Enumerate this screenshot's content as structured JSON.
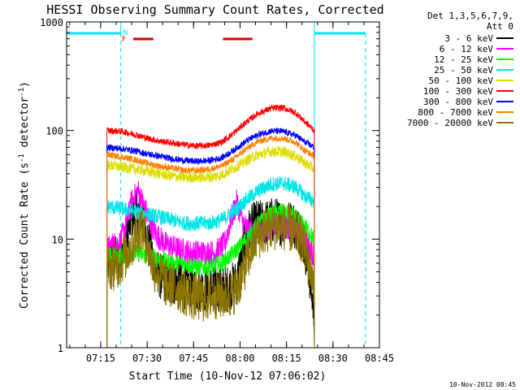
{
  "chart_data": {
    "type": "line",
    "title": "HESSI Observing Summary Count Rates, Corrected",
    "xlabel": "Start Time (10-Nov-12 07:06:02)",
    "ylabel_main": "Corrected Count Rate (s",
    "ylabel_sup1": "-1",
    "ylabel_mid": " detector",
    "ylabel_sup2": "-1",
    "ylabel_end": ")",
    "y_scale": "log",
    "ylim": [
      1,
      1000
    ],
    "xlim_minutes": [
      -2.0,
      99.0
    ],
    "x_ticks": [
      {
        "m": 9,
        "label": "07:15"
      },
      {
        "m": 24,
        "label": "07:30"
      },
      {
        "m": 39,
        "label": "07:45"
      },
      {
        "m": 54,
        "label": "08:00"
      },
      {
        "m": 69,
        "label": "08:15"
      },
      {
        "m": 84,
        "label": "08:30"
      },
      {
        "m": 99,
        "label": "08:45"
      }
    ],
    "y_ticks": [
      {
        "v": 1,
        "label": "1"
      },
      {
        "v": 10,
        "label": "10"
      },
      {
        "v": 100,
        "label": "100"
      },
      {
        "v": 1000,
        "label": "1000"
      }
    ],
    "legend_title": [
      "Det 1,3,5,6,7,9,",
      "Att 0"
    ],
    "legend_placement": "right",
    "data_interval_minutes": [
      11,
      78
    ],
    "night_intervals_minutes": [
      [
        -2,
        15.5
      ],
      [
        78,
        94.5
      ]
    ],
    "night_marker_label": "N",
    "night_bar_color": "#00e5e5",
    "flare_intervals_minutes": [
      [
        19.5,
        26
      ],
      [
        48.5,
        58
      ]
    ],
    "flare_marker_label": "F",
    "flare_bar_color": "#e00000",
    "dashed_markers_minutes": [
      15.5,
      94.5
    ],
    "series": [
      {
        "name": "3 - 6 keV",
        "color": "#000000",
        "points": [
          [
            11,
            6
          ],
          [
            13,
            7
          ],
          [
            15,
            6
          ],
          [
            17,
            10
          ],
          [
            19,
            16
          ],
          [
            21,
            18
          ],
          [
            23,
            14
          ],
          [
            25,
            8
          ],
          [
            27,
            5
          ],
          [
            30,
            4
          ],
          [
            34,
            4
          ],
          [
            38,
            3.5
          ],
          [
            42,
            3.5
          ],
          [
            46,
            3.5
          ],
          [
            50,
            3.5
          ],
          [
            53,
            4
          ],
          [
            55,
            8
          ],
          [
            57,
            12
          ],
          [
            59,
            14
          ],
          [
            62,
            14
          ],
          [
            65,
            15
          ],
          [
            68,
            14
          ],
          [
            71,
            14
          ],
          [
            74,
            11
          ],
          [
            76,
            6
          ],
          [
            78,
            2
          ]
        ]
      },
      {
        "name": "6 - 12 keV",
        "color": "#ff00ff",
        "points": [
          [
            11,
            8
          ],
          [
            13,
            9
          ],
          [
            15,
            9
          ],
          [
            17,
            13
          ],
          [
            19,
            22
          ],
          [
            21,
            28
          ],
          [
            23,
            20
          ],
          [
            25,
            14
          ],
          [
            27,
            11
          ],
          [
            30,
            9
          ],
          [
            34,
            8
          ],
          [
            38,
            7.5
          ],
          [
            42,
            7.5
          ],
          [
            46,
            7.5
          ],
          [
            49,
            9
          ],
          [
            51,
            15
          ],
          [
            53,
            22
          ],
          [
            55,
            14
          ],
          [
            57,
            12
          ],
          [
            60,
            12
          ],
          [
            63,
            13
          ],
          [
            67,
            14
          ],
          [
            70,
            13
          ],
          [
            73,
            12
          ],
          [
            76,
            9
          ],
          [
            78,
            7
          ]
        ]
      },
      {
        "name": "12 - 25 keV",
        "color": "#00ff00",
        "points": [
          [
            11,
            7
          ],
          [
            16,
            7
          ],
          [
            20,
            7.5
          ],
          [
            24,
            7
          ],
          [
            28,
            6.5
          ],
          [
            32,
            6
          ],
          [
            36,
            6
          ],
          [
            40,
            5.5
          ],
          [
            44,
            5.5
          ],
          [
            48,
            6
          ],
          [
            52,
            7.5
          ],
          [
            56,
            10
          ],
          [
            60,
            14
          ],
          [
            64,
            17
          ],
          [
            67,
            18
          ],
          [
            70,
            17
          ],
          [
            73,
            15
          ],
          [
            76,
            12
          ],
          [
            78,
            10
          ]
        ]
      },
      {
        "name": "25 - 50 keV",
        "color": "#00e5e5",
        "points": [
          [
            11,
            20
          ],
          [
            16,
            19
          ],
          [
            20,
            18
          ],
          [
            24,
            17
          ],
          [
            28,
            16
          ],
          [
            32,
            15
          ],
          [
            36,
            14
          ],
          [
            40,
            14
          ],
          [
            44,
            14
          ],
          [
            48,
            15
          ],
          [
            52,
            18
          ],
          [
            56,
            23
          ],
          [
            60,
            28
          ],
          [
            64,
            32
          ],
          [
            68,
            33
          ],
          [
            72,
            30
          ],
          [
            75,
            25
          ],
          [
            78,
            22
          ]
        ]
      },
      {
        "name": "50 - 100 keV",
        "color": "#dddd00",
        "points": [
          [
            11,
            48
          ],
          [
            16,
            46
          ],
          [
            20,
            44
          ],
          [
            24,
            42
          ],
          [
            28,
            40
          ],
          [
            32,
            38
          ],
          [
            36,
            37
          ],
          [
            40,
            37
          ],
          [
            44,
            37
          ],
          [
            48,
            39
          ],
          [
            52,
            45
          ],
          [
            56,
            53
          ],
          [
            60,
            60
          ],
          [
            64,
            64
          ],
          [
            68,
            64
          ],
          [
            72,
            58
          ],
          [
            75,
            50
          ],
          [
            78,
            44
          ]
        ]
      },
      {
        "name": "100 - 300 keV",
        "color": "#ff0000",
        "points": [
          [
            11,
            100
          ],
          [
            16,
            98
          ],
          [
            20,
            92
          ],
          [
            24,
            85
          ],
          [
            28,
            80
          ],
          [
            32,
            77
          ],
          [
            36,
            74
          ],
          [
            40,
            72
          ],
          [
            44,
            73
          ],
          [
            48,
            78
          ],
          [
            52,
            95
          ],
          [
            56,
            120
          ],
          [
            60,
            145
          ],
          [
            64,
            160
          ],
          [
            68,
            162
          ],
          [
            72,
            145
          ],
          [
            75,
            120
          ],
          [
            78,
            100
          ]
        ]
      },
      {
        "name": "300 - 800 keV",
        "color": "#0000ff",
        "points": [
          [
            11,
            70
          ],
          [
            16,
            68
          ],
          [
            20,
            65
          ],
          [
            24,
            61
          ],
          [
            28,
            58
          ],
          [
            32,
            55
          ],
          [
            36,
            53
          ],
          [
            40,
            52
          ],
          [
            44,
            53
          ],
          [
            48,
            56
          ],
          [
            52,
            66
          ],
          [
            56,
            80
          ],
          [
            60,
            92
          ],
          [
            64,
            99
          ],
          [
            68,
            98
          ],
          [
            72,
            90
          ],
          [
            75,
            78
          ],
          [
            78,
            70
          ]
        ]
      },
      {
        "name": "800 - 7000 keV",
        "color": "#ff8000",
        "points": [
          [
            11,
            60
          ],
          [
            16,
            57
          ],
          [
            20,
            54
          ],
          [
            24,
            50
          ],
          [
            28,
            47
          ],
          [
            32,
            45
          ],
          [
            36,
            43
          ],
          [
            40,
            43
          ],
          [
            44,
            44
          ],
          [
            48,
            47
          ],
          [
            52,
            55
          ],
          [
            56,
            68
          ],
          [
            60,
            80
          ],
          [
            64,
            85
          ],
          [
            68,
            85
          ],
          [
            72,
            78
          ],
          [
            75,
            65
          ],
          [
            78,
            58
          ]
        ]
      },
      {
        "name": "7000 - 20000 keV",
        "color": "#8b7500",
        "points": [
          [
            11,
            5.5
          ],
          [
            14,
            5.5
          ],
          [
            17,
            7
          ],
          [
            20,
            10
          ],
          [
            22,
            13
          ],
          [
            24,
            9
          ],
          [
            26,
            5.5
          ],
          [
            30,
            4
          ],
          [
            34,
            3.5
          ],
          [
            38,
            3
          ],
          [
            42,
            2.8
          ],
          [
            46,
            3
          ],
          [
            50,
            3
          ],
          [
            53,
            3.5
          ],
          [
            56,
            6
          ],
          [
            59,
            10
          ],
          [
            62,
            12
          ],
          [
            65,
            13
          ],
          [
            68,
            13
          ],
          [
            71,
            12
          ],
          [
            74,
            10
          ],
          [
            76,
            6
          ],
          [
            78,
            4
          ]
        ]
      }
    ]
  },
  "timestamp": "10-Nov-2012 08:45"
}
